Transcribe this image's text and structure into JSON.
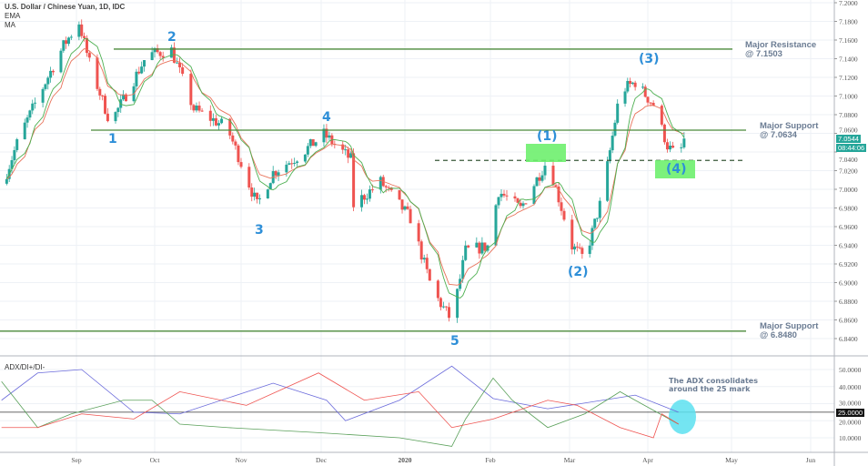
{
  "header": {
    "title": "U.S. Dollar / Chinese Yuan, 1D, IDC",
    "indicators": [
      "EMA",
      "MA"
    ],
    "adx_label": "ADX/DI+/DI-"
  },
  "price_tag": {
    "price": "7.0544",
    "countdown": "08:44:06",
    "color": "#26a69a"
  },
  "adx_tag": "25.0000",
  "annotations": {
    "major_resistance": [
      "Major Resistance",
      "@ 7.1503"
    ],
    "major_support_1": [
      "Major Support",
      "@ 7.0634"
    ],
    "major_support_2": [
      "Major Support",
      "@ 6.8480"
    ],
    "adx_note": [
      "The ADX consolidates",
      "around the 25 mark"
    ],
    "waves": {
      "w1": "1",
      "w2": "2",
      "w3": "3",
      "w4": "4",
      "w5": "5",
      "c1": "(1)",
      "c2": "(2)",
      "c3": "(3)",
      "c4": "(4)"
    }
  },
  "colors": {
    "up": "#26a69a",
    "down": "#ef5350",
    "ema": "#e8725a",
    "ma": "#4caf50",
    "levels": "#4a8a3a",
    "wave_labels": "#2e8fd8",
    "highlight": "#6ef06e",
    "adx": "#6b6bdb",
    "di_plus": "#5aa05a",
    "di_minus": "#ef5350",
    "ellipse": "#5ce0f0"
  },
  "chart_data": {
    "type": "candlestick",
    "symbol": "USD/CNY",
    "timeframe": "1D",
    "price_axis": {
      "range": [
        6.83,
        7.2
      ],
      "ticks": [
        "7.2000",
        "7.1800",
        "7.1600",
        "7.1400",
        "7.1200",
        "7.1000",
        "7.0800",
        "7.0600",
        "7.0400",
        "7.0200",
        "7.0000",
        "6.9800",
        "6.9600",
        "6.9400",
        "6.9200",
        "6.9000",
        "6.8800",
        "6.8600",
        "6.8400"
      ]
    },
    "time_axis": {
      "ticks": [
        "Sep",
        "Oct",
        "Nov",
        "Dec",
        "2020",
        "Feb",
        "Mar",
        "Apr",
        "May",
        "Jun"
      ]
    },
    "levels": [
      {
        "name": "Major Resistance",
        "price": 7.1503
      },
      {
        "name": "Major Support",
        "price": 7.0634
      },
      {
        "name": "Major Support",
        "price": 6.848
      },
      {
        "name": "dashed",
        "price": 7.031
      }
    ],
    "close_path": [
      [
        "2019-08-03",
        6.94
      ],
      [
        "2019-08-05",
        7.018
      ],
      [
        "2019-08-10",
        7.057
      ],
      [
        "2019-08-20",
        7.115
      ],
      [
        "2019-08-27",
        7.154
      ],
      [
        "2019-09-02",
        7.179
      ],
      [
        "2019-09-06",
        7.135
      ],
      [
        "2019-09-14",
        7.071
      ],
      [
        "2019-09-19",
        7.096
      ],
      [
        "2019-09-28",
        7.144
      ],
      [
        "2019-10-07",
        7.149
      ],
      [
        "2019-10-15",
        7.086
      ],
      [
        "2019-10-27",
        7.066
      ],
      [
        "2019-11-07",
        6.983
      ],
      [
        "2019-11-13",
        7.018
      ],
      [
        "2019-11-23",
        7.037
      ],
      [
        "2019-12-02",
        7.059
      ],
      [
        "2019-12-12",
        7.032
      ],
      [
        "2019-12-13",
        6.983
      ],
      [
        "2019-12-23",
        7.008
      ],
      [
        "2020-01-03",
        6.969
      ],
      [
        "2020-01-11",
        6.891
      ],
      [
        "2020-01-18",
        6.859
      ],
      [
        "2020-01-23",
        6.934
      ],
      [
        "2020-01-31",
        6.939
      ],
      [
        "2020-02-04",
        6.998
      ],
      [
        "2020-02-12",
        6.979
      ],
      [
        "2020-02-22",
        7.032
      ],
      [
        "2020-03-02",
        6.939
      ],
      [
        "2020-03-07",
        6.925
      ],
      [
        "2020-03-14",
        6.993
      ],
      [
        "2020-03-21",
        7.105
      ],
      [
        "2020-03-27",
        7.115
      ],
      [
        "2020-04-03",
        7.091
      ],
      [
        "2020-04-08",
        7.047
      ],
      [
        "2020-04-12",
        7.032
      ],
      [
        "2020-04-14",
        7.0544
      ]
    ],
    "adx_axis": {
      "ticks": [
        "50.0000",
        "40.0000",
        "30.0000",
        "20.0000",
        "10.0000"
      ],
      "level": 25
    },
    "adx": [
      [
        "2019-08-03",
        32
      ],
      [
        "2019-08-17",
        48
      ],
      [
        "2019-09-03",
        50
      ],
      [
        "2019-09-23",
        25
      ],
      [
        "2019-10-10",
        24
      ],
      [
        "2019-11-13",
        42
      ],
      [
        "2019-12-03",
        32
      ],
      [
        "2019-12-10",
        20
      ],
      [
        "2019-12-30",
        32
      ],
      [
        "2020-01-18",
        52
      ],
      [
        "2020-02-02",
        33
      ],
      [
        "2020-02-22",
        27
      ],
      [
        "2020-03-27",
        35
      ],
      [
        "2020-04-12",
        25
      ]
    ],
    "di_plus": [
      [
        "2019-08-03",
        43
      ],
      [
        "2019-08-17",
        16
      ],
      [
        "2019-08-30",
        24
      ],
      [
        "2019-09-19",
        32
      ],
      [
        "2019-09-30",
        32
      ],
      [
        "2019-10-10",
        18
      ],
      [
        "2019-10-27",
        16
      ],
      [
        "2019-11-30",
        13
      ],
      [
        "2019-12-30",
        10
      ],
      [
        "2020-01-18",
        5
      ],
      [
        "2020-01-23",
        21
      ],
      [
        "2020-02-02",
        45
      ],
      [
        "2020-02-09",
        32
      ],
      [
        "2020-02-22",
        16
      ],
      [
        "2020-03-07",
        24
      ],
      [
        "2020-03-21",
        37
      ],
      [
        "2020-03-27",
        32
      ],
      [
        "2020-04-12",
        18
      ]
    ],
    "di_minus": [
      [
        "2019-08-03",
        16
      ],
      [
        "2019-08-17",
        16
      ],
      [
        "2019-09-03",
        24
      ],
      [
        "2019-09-23",
        21
      ],
      [
        "2019-10-10",
        37
      ],
      [
        "2019-11-03",
        29
      ],
      [
        "2019-11-30",
        48
      ],
      [
        "2019-12-17",
        32
      ],
      [
        "2020-01-06",
        37
      ],
      [
        "2020-01-18",
        16
      ],
      [
        "2020-02-02",
        21
      ],
      [
        "2020-02-22",
        32
      ],
      [
        "2020-03-04",
        29
      ],
      [
        "2020-03-21",
        16
      ],
      [
        "2020-04-03",
        10
      ],
      [
        "2020-04-06",
        24
      ],
      [
        "2020-04-12",
        18
      ]
    ]
  }
}
